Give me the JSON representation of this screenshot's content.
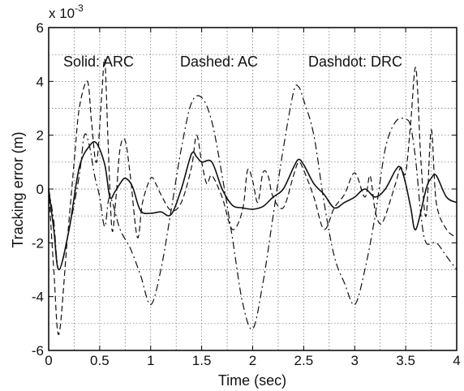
{
  "chart_data": {
    "type": "line",
    "xlabel": "Time (sec)",
    "ylabel": "Tracking error (m)",
    "y_exponent_label": "x 10",
    "y_exponent_power": "-3",
    "xlim": [
      0,
      4
    ],
    "ylim": [
      -6,
      6
    ],
    "x_ticks": [
      "0",
      "0.5",
      "1",
      "1.5",
      "2",
      "2.5",
      "3",
      "3.5",
      "4"
    ],
    "y_ticks": [
      "-6",
      "-4",
      "-2",
      "0",
      "2",
      "4",
      "6"
    ],
    "grid": true,
    "annotations": [
      "Solid: ARC",
      "Dashed: AC",
      "Dashdot: DRC"
    ],
    "series": [
      {
        "name": "ARC",
        "style": "solid",
        "x": [
          0,
          0.05,
          0.1,
          0.2,
          0.3,
          0.4,
          0.47,
          0.55,
          0.6,
          0.65,
          0.7,
          0.75,
          0.82,
          0.9,
          1.0,
          1.1,
          1.2,
          1.3,
          1.4,
          1.45,
          1.5,
          1.6,
          1.7,
          1.8,
          1.9,
          2.0,
          2.1,
          2.2,
          2.3,
          2.4,
          2.45,
          2.5,
          2.6,
          2.7,
          2.8,
          2.9,
          3.0,
          3.1,
          3.2,
          3.3,
          3.4,
          3.45,
          3.5,
          3.55,
          3.6,
          3.7,
          3.75,
          3.8,
          3.9,
          4.0
        ],
        "y": [
          0,
          -1.5,
          -3.0,
          -1.5,
          0.8,
          1.6,
          1.7,
          0.9,
          -0.3,
          -0.1,
          0.2,
          0.4,
          0.1,
          -0.8,
          -0.9,
          -0.85,
          -0.95,
          0.0,
          1.3,
          1.2,
          1.0,
          1.0,
          0.0,
          -0.6,
          -0.7,
          -0.75,
          -0.65,
          -0.3,
          0.0,
          0.8,
          1.1,
          0.9,
          0.2,
          -0.2,
          -0.7,
          -0.5,
          -0.3,
          0.0,
          -0.3,
          0.0,
          0.7,
          0.8,
          0.2,
          -0.7,
          -1.5,
          0.0,
          0.4,
          0.5,
          -0.3,
          -0.5
        ]
      },
      {
        "name": "AC",
        "style": "dashed",
        "x": [
          0,
          0.05,
          0.1,
          0.18,
          0.25,
          0.3,
          0.38,
          0.42,
          0.47,
          0.52,
          0.55,
          0.58,
          0.62,
          0.66,
          0.7,
          0.75,
          0.8,
          0.87,
          0.92,
          1.0,
          1.05,
          1.1,
          1.2,
          1.3,
          1.4,
          1.45,
          1.5,
          1.55,
          1.6,
          1.7,
          1.8,
          1.9,
          1.95,
          2.0,
          2.05,
          2.1,
          2.15,
          2.2,
          2.3,
          2.4,
          2.45,
          2.5,
          2.6,
          2.7,
          2.8,
          2.9,
          3.0,
          3.1,
          3.15,
          3.2,
          3.25,
          3.3,
          3.4,
          3.45,
          3.5,
          3.55,
          3.6,
          3.65,
          3.7,
          3.75,
          3.8,
          3.9,
          4.0
        ],
        "y": [
          0,
          -3.0,
          -5.4,
          -2.0,
          1.0,
          3.0,
          4.0,
          2.5,
          1.0,
          3.5,
          4.8,
          2.0,
          -1.5,
          -0.3,
          1.5,
          1.8,
          0.5,
          -1.8,
          -0.5,
          0.4,
          0.2,
          -0.2,
          -0.8,
          -0.5,
          0.8,
          2.0,
          1.0,
          0.2,
          0.5,
          -0.3,
          -1.5,
          -0.8,
          0.7,
          0.3,
          -0.5,
          0.6,
          0.5,
          -0.3,
          -0.7,
          0.5,
          1.0,
          0.7,
          -0.3,
          -1.5,
          -0.7,
          -0.2,
          0.6,
          -0.3,
          0.5,
          -0.8,
          -1.3,
          -1.0,
          0.2,
          0.8,
          0.6,
          2.5,
          4.5,
          1.0,
          -1.0,
          2.2,
          -0.5,
          -1.5,
          -1.8
        ]
      },
      {
        "name": "DRC",
        "style": "dashdot",
        "x": [
          0,
          0.05,
          0.1,
          0.2,
          0.3,
          0.35,
          0.4,
          0.45,
          0.5,
          0.55,
          0.6,
          0.7,
          0.8,
          0.9,
          1.0,
          1.1,
          1.2,
          1.3,
          1.4,
          1.5,
          1.6,
          1.7,
          1.8,
          1.9,
          2.0,
          2.1,
          2.2,
          2.3,
          2.4,
          2.45,
          2.5,
          2.6,
          2.7,
          2.8,
          2.9,
          3.0,
          3.1,
          3.2,
          3.3,
          3.4,
          3.5,
          3.55,
          3.6,
          3.65,
          3.7,
          3.8,
          3.9,
          4.0
        ],
        "y": [
          0,
          -1.2,
          -3.0,
          -1.5,
          0.5,
          2.0,
          1.6,
          0.5,
          -0.3,
          -1.4,
          -0.3,
          -1.5,
          -2.2,
          -3.2,
          -4.3,
          -3.0,
          -0.8,
          1.5,
          3.2,
          3.4,
          2.5,
          0.5,
          -1.8,
          -4.2,
          -5.2,
          -3.5,
          -1.0,
          1.5,
          3.6,
          3.8,
          3.3,
          2.0,
          -0.5,
          -2.5,
          -3.5,
          -4.3,
          -3.0,
          -1.0,
          1.5,
          2.5,
          2.6,
          2.3,
          1.0,
          -1.0,
          -2.0,
          -2.0,
          -2.5,
          -3.0
        ]
      }
    ]
  }
}
